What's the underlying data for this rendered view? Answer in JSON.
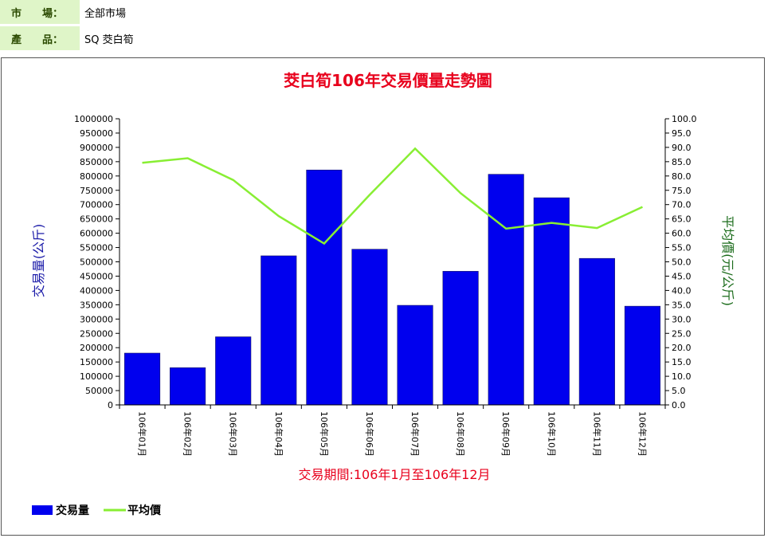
{
  "filters": {
    "market_label": "市　　場：",
    "market_value": "全部市場",
    "product_label": "產　　品：",
    "product_value": "SQ 茭白筍"
  },
  "colors": {
    "title": "#e8001c",
    "volume_bar": "#0000ee",
    "price_line": "#88ee33",
    "left_axis_label": "#1a1aa8",
    "right_axis_label": "#1a6b1a"
  },
  "chart_data": {
    "type": "bar",
    "title": "茭白筍106年交易價量走勢圖",
    "xlabel": "交易期間:106年1月至106年12月",
    "ylabel": "交易量(公斤)",
    "y2label": "平均價(元/公斤)",
    "categories": [
      "106年01月",
      "106年02月",
      "106年03月",
      "106年04月",
      "106年05月",
      "106年06月",
      "106年07月",
      "106年08月",
      "106年09月",
      "106年10月",
      "106年11月",
      "106年12月"
    ],
    "ylim": [
      0,
      1000000
    ],
    "y2lim": [
      0,
      100
    ],
    "yticks": [
      "0",
      "50000",
      "100000",
      "150000",
      "200000",
      "250000",
      "300000",
      "350000",
      "400000",
      "450000",
      "500000",
      "550000",
      "600000",
      "650000",
      "700000",
      "750000",
      "800000",
      "850000",
      "900000",
      "950000",
      "1000000"
    ],
    "y2ticks": [
      "0.0",
      "5.0",
      "10.0",
      "15.0",
      "20.0",
      "25.0",
      "30.0",
      "35.0",
      "40.0",
      "45.0",
      "50.0",
      "55.0",
      "60.0",
      "65.0",
      "70.0",
      "75.0",
      "80.0",
      "85.0",
      "90.0",
      "95.0",
      "100.0"
    ],
    "series": [
      {
        "name": "交易量",
        "type": "bar",
        "axis": "left",
        "values": [
          181000,
          130000,
          238000,
          521000,
          821000,
          544000,
          348000,
          467000,
          806000,
          724000,
          512000,
          345000
        ]
      },
      {
        "name": "平均價",
        "type": "line",
        "axis": "right",
        "values": [
          84.6,
          86.2,
          78.6,
          66.0,
          56.4,
          73.4,
          89.6,
          74.0,
          61.6,
          63.6,
          61.8,
          69.2
        ]
      }
    ],
    "legend_position": "bottom-left",
    "grid": false
  }
}
